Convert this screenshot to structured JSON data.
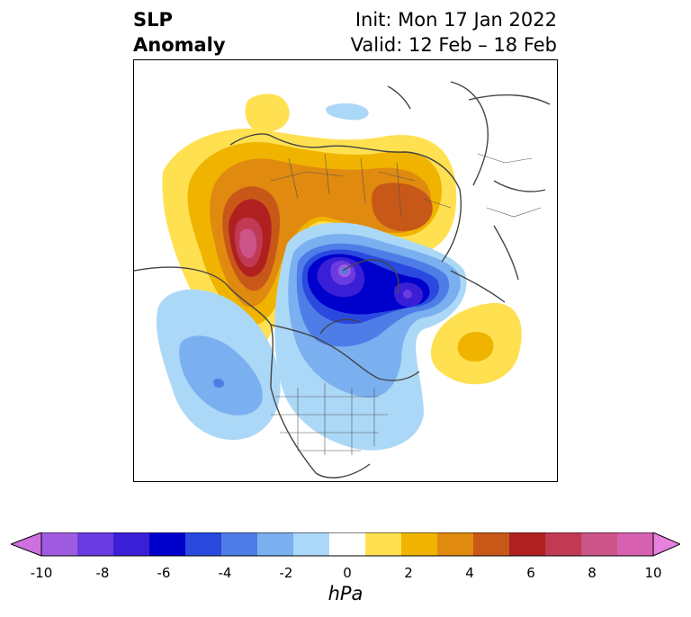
{
  "title": {
    "left_line1": "SLP",
    "left_line2": "Anomaly",
    "right_line1": "Init: Mon 17 Jan 2022",
    "right_line2": "Valid: 12 Feb – 18 Feb"
  },
  "colorbar": {
    "units": "hPa",
    "ticks": [
      "-10",
      "-8",
      "-6",
      "-4",
      "-2",
      "0",
      "2",
      "4",
      "6",
      "8",
      "10"
    ],
    "colors": [
      "#d070e0",
      "#a05ce0",
      "#6a3be0",
      "#3b1fd6",
      "#0000cc",
      "#2a4adf",
      "#4f7de8",
      "#7ab0f0",
      "#acd8f8",
      "#ffffff",
      "#ffe050",
      "#f0b400",
      "#e08a10",
      "#c85818",
      "#b02020",
      "#c03a54",
      "#cc5488",
      "#d860b0",
      "#e880e0"
    ]
  }
}
